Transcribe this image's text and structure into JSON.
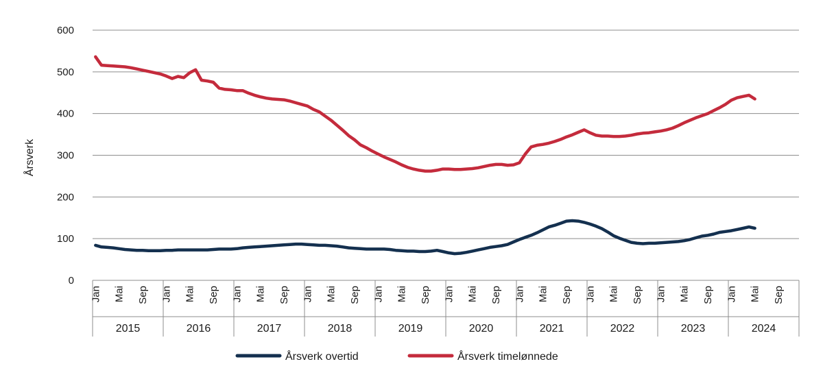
{
  "chart_data": {
    "type": "line",
    "ylabel": "Årsverk",
    "ylim": [
      0,
      600
    ],
    "yticks": [
      0,
      100,
      200,
      300,
      400,
      500,
      600
    ],
    "grid": true,
    "legend_position": "bottom",
    "month_ticks": [
      "Jan",
      "Mai",
      "Sep"
    ],
    "years": [
      "2015",
      "2016",
      "2017",
      "2018",
      "2019",
      "2020",
      "2021",
      "2022",
      "2023",
      "2024"
    ],
    "x_start": "2015-01",
    "series": [
      {
        "name": "Årsverk overtid",
        "color": "#14304f",
        "values": [
          84,
          80,
          79,
          78,
          76,
          74,
          73,
          72,
          72,
          71,
          71,
          71,
          72,
          72,
          73,
          73,
          73,
          73,
          73,
          73,
          74,
          75,
          75,
          75,
          76,
          78,
          79,
          80,
          81,
          82,
          83,
          84,
          85,
          86,
          87,
          87,
          86,
          85,
          84,
          84,
          83,
          82,
          80,
          78,
          77,
          76,
          75,
          75,
          75,
          75,
          74,
          72,
          71,
          70,
          70,
          69,
          69,
          70,
          72,
          69,
          66,
          64,
          65,
          67,
          70,
          73,
          76,
          79,
          81,
          83,
          86,
          92,
          98,
          103,
          108,
          114,
          121,
          128,
          132,
          137,
          142,
          143,
          142,
          139,
          135,
          130,
          124,
          116,
          107,
          101,
          96,
          91,
          89,
          88,
          89,
          89,
          90,
          91,
          92,
          93,
          95,
          98,
          102,
          106,
          108,
          111,
          115,
          117,
          119,
          122,
          125,
          128,
          125
        ]
      },
      {
        "name": "Årsverk timelønnede",
        "color": "#c42b3c",
        "values": [
          536,
          516,
          515,
          514,
          513,
          512,
          510,
          507,
          504,
          501,
          498,
          495,
          490,
          484,
          489,
          486,
          498,
          505,
          480,
          478,
          475,
          461,
          458,
          457,
          455,
          455,
          449,
          444,
          440,
          437,
          435,
          434,
          433,
          430,
          426,
          422,
          418,
          410,
          404,
          394,
          384,
          372,
          360,
          347,
          337,
          325,
          318,
          310,
          303,
          296,
          290,
          284,
          277,
          271,
          267,
          264,
          262,
          262,
          264,
          267,
          267,
          266,
          266,
          267,
          268,
          270,
          273,
          276,
          278,
          278,
          276,
          277,
          282,
          303,
          320,
          324,
          326,
          329,
          333,
          338,
          344,
          349,
          355,
          361,
          354,
          348,
          346,
          346,
          345,
          345,
          346,
          348,
          351,
          353,
          354,
          356,
          358,
          361,
          365,
          371,
          378,
          384,
          390,
          395,
          400,
          407,
          414,
          422,
          432,
          438,
          441,
          444,
          435
        ]
      }
    ]
  }
}
